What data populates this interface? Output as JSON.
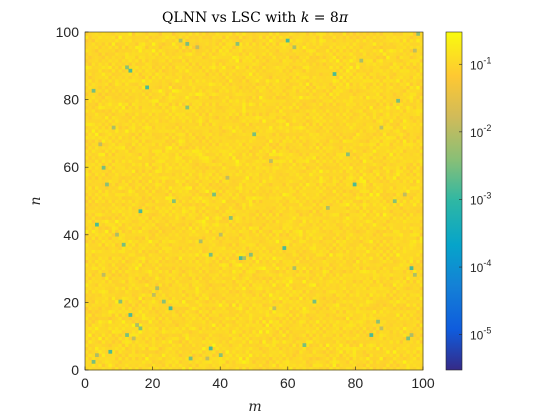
{
  "chart_data": {
    "type": "heatmap",
    "title": "QLNN vs LSC with k = 8π",
    "title_parts": {
      "prefix": "QLNN vs LSC with ",
      "var": "k",
      "suffix": " = 8",
      "pi": "π"
    },
    "xlabel": "m",
    "ylabel": "n",
    "xlim": [
      0,
      100
    ],
    "ylim": [
      0,
      100
    ],
    "x_ticks": [
      "0",
      "20",
      "40",
      "60",
      "80",
      "100"
    ],
    "y_ticks": [
      "0",
      "20",
      "40",
      "60",
      "80",
      "100"
    ],
    "grid_size": 101,
    "colorbar": {
      "scale": "log",
      "range": [
        3e-06,
        0.3
      ],
      "colormap": "parula",
      "ticks": [
        {
          "value": 1e-05,
          "base": "10",
          "exp": "-5"
        },
        {
          "value": 0.0001,
          "base": "10",
          "exp": "-4"
        },
        {
          "value": 0.001,
          "base": "10",
          "exp": "-3"
        },
        {
          "value": 0.01,
          "base": "10",
          "exp": "-2"
        },
        {
          "value": 0.1,
          "base": "10",
          "exp": "-1"
        }
      ]
    },
    "typical_value_range": [
      0.04,
      0.15
    ],
    "low_points": [
      [
        12,
        90
      ],
      [
        13,
        89
      ],
      [
        28,
        98
      ],
      [
        30,
        97
      ],
      [
        33,
        96
      ],
      [
        45,
        97
      ],
      [
        60,
        98
      ],
      [
        62,
        96
      ],
      [
        2,
        83
      ],
      [
        4,
        67
      ],
      [
        6,
        55
      ],
      [
        3,
        43
      ],
      [
        9,
        40
      ],
      [
        11,
        37
      ],
      [
        5,
        28
      ],
      [
        10,
        20
      ],
      [
        13,
        16
      ],
      [
        15,
        13
      ],
      [
        12,
        10
      ],
      [
        14,
        9
      ],
      [
        16,
        12
      ],
      [
        7,
        5
      ],
      [
        3,
        4
      ],
      [
        2,
        2
      ],
      [
        20,
        22
      ],
      [
        23,
        20
      ],
      [
        25,
        18
      ],
      [
        21,
        24
      ],
      [
        31,
        3
      ],
      [
        36,
        3
      ],
      [
        40,
        4
      ],
      [
        37,
        6
      ],
      [
        34,
        38
      ],
      [
        37,
        34
      ],
      [
        40,
        40
      ],
      [
        43,
        45
      ],
      [
        46,
        33
      ],
      [
        47,
        33
      ],
      [
        38,
        52
      ],
      [
        42,
        57
      ],
      [
        49,
        34
      ],
      [
        59,
        36
      ],
      [
        62,
        30
      ],
      [
        65,
        7
      ],
      [
        88,
        12
      ],
      [
        87,
        14
      ],
      [
        85,
        10
      ],
      [
        97,
        10
      ],
      [
        96,
        9
      ],
      [
        95,
        52
      ],
      [
        92,
        50
      ],
      [
        97,
        30
      ],
      [
        98,
        28
      ],
      [
        93,
        80
      ],
      [
        88,
        72
      ],
      [
        78,
        64
      ],
      [
        80,
        55
      ],
      [
        72,
        48
      ],
      [
        68,
        20
      ],
      [
        56,
        18
      ],
      [
        30,
        78
      ],
      [
        18,
        84
      ],
      [
        8,
        72
      ],
      [
        5,
        60
      ],
      [
        98,
        95
      ],
      [
        99,
        100
      ],
      [
        74,
        88
      ],
      [
        82,
        92
      ],
      [
        50,
        70
      ],
      [
        55,
        62
      ],
      [
        26,
        50
      ],
      [
        16,
        47
      ]
    ]
  }
}
